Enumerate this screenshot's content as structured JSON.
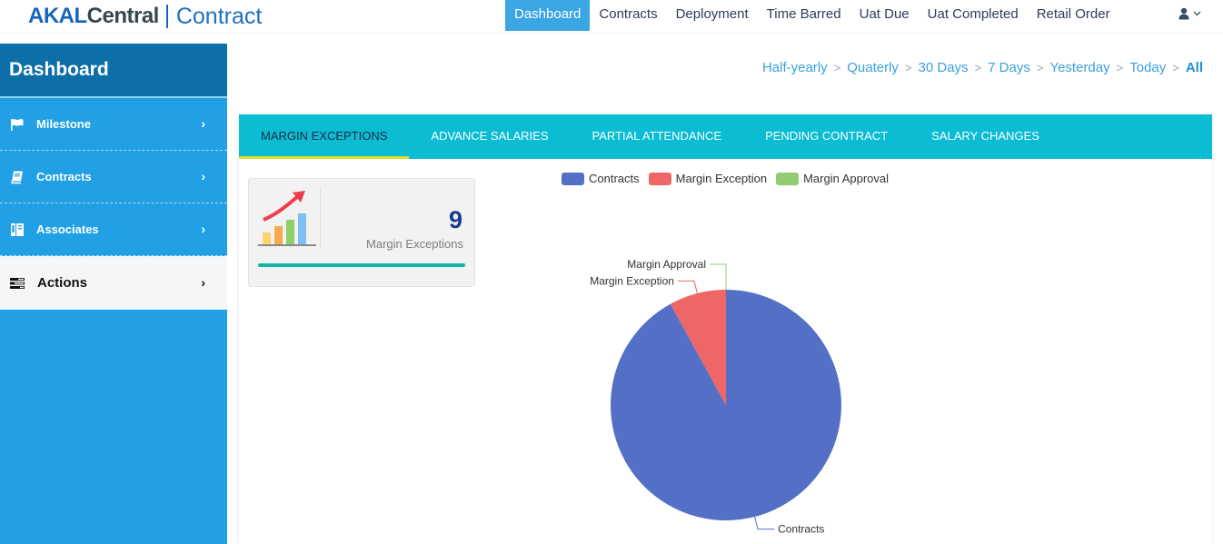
{
  "header": {
    "logo": {
      "akal": "AKAL",
      "central": "Central",
      "product": "Contract"
    },
    "nav": [
      {
        "label": "Dashboard",
        "active": true
      },
      {
        "label": "Contracts",
        "active": false
      },
      {
        "label": "Deployment",
        "active": false
      },
      {
        "label": "Time Barred",
        "active": false
      },
      {
        "label": "Uat Due",
        "active": false
      },
      {
        "label": "Uat Completed",
        "active": false
      },
      {
        "label": "Retail Order",
        "active": false
      }
    ],
    "user_icon": "user-icon",
    "user_chevron": "chevron-down-icon"
  },
  "sidebar": {
    "title": "Dashboard",
    "items": [
      {
        "label": "Milestone",
        "icon": "flag-icon"
      },
      {
        "label": "Contracts",
        "icon": "book-icon"
      },
      {
        "label": "Associates",
        "icon": "id-card-icon"
      },
      {
        "label": "Actions",
        "icon": "tasks-icon",
        "selected": true
      }
    ]
  },
  "filters": [
    "Half-yearly",
    "Quaterly",
    "30 Days",
    "7 Days",
    "Yesterday",
    "Today",
    "All"
  ],
  "tabs": [
    {
      "label": "MARGIN EXCEPTIONS",
      "active": true
    },
    {
      "label": "ADVANCE SALARIES",
      "active": false
    },
    {
      "label": "PARTIAL ATTENDANCE",
      "active": false
    },
    {
      "label": "PENDING CONTRACT",
      "active": false
    },
    {
      "label": "SALARY CHANGES",
      "active": false
    }
  ],
  "summary_card": {
    "value": "9",
    "label": "Margin Exceptions",
    "icon": "growth-chart-icon"
  },
  "colors": {
    "accent": "#0bbcd3",
    "sidebar": "#21a0e6",
    "contracts": "#5470c6",
    "margin_exception": "#ee6666",
    "margin_approval": "#91cc75"
  },
  "chart_data": {
    "type": "pie",
    "title": "",
    "legend_position": "top",
    "series": [
      {
        "name": "Contracts",
        "value": 92,
        "color": "#5470c6"
      },
      {
        "name": "Margin Exception",
        "value": 8,
        "color": "#ee6666"
      },
      {
        "name": "Margin Approval",
        "value": 0,
        "color": "#91cc75"
      }
    ]
  }
}
